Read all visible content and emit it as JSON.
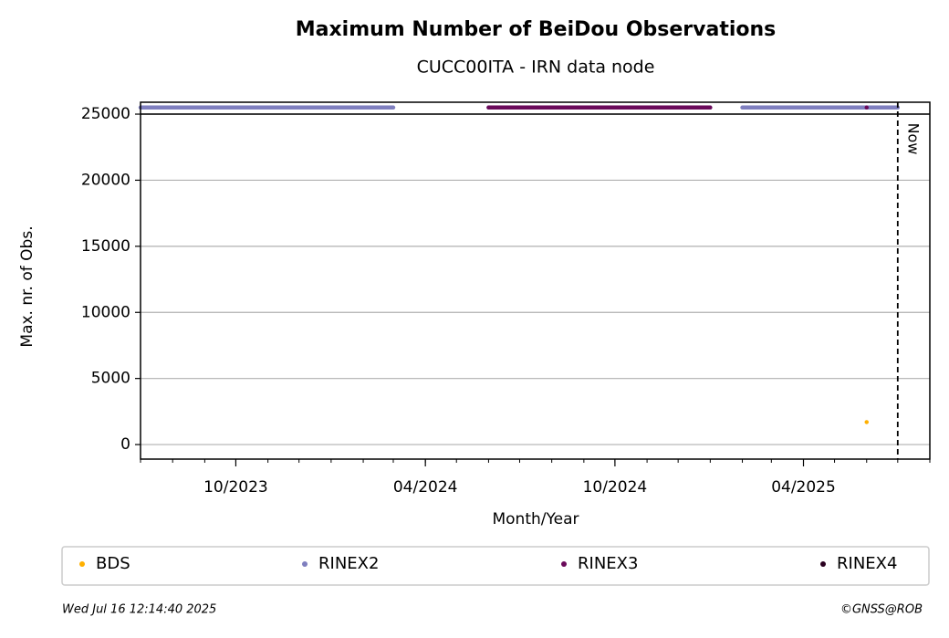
{
  "chart_data": {
    "type": "line",
    "title": "Maximum Number of BeiDou Observations",
    "subtitle": "CUCC00ITA - IRN data node",
    "x_label": "Month/Year",
    "y_label": "Max. nr. of Obs.",
    "xlim": [
      "2023-07",
      "2025-08"
    ],
    "xticks": [
      {
        "value": "2023-10",
        "label": "10/2023"
      },
      {
        "value": "2024-04",
        "label": "04/2024"
      },
      {
        "value": "2024-10",
        "label": "10/2024"
      },
      {
        "value": "2025-04",
        "label": "04/2025"
      }
    ],
    "ylim": [
      -1100,
      25900
    ],
    "yticks": [
      0,
      5000,
      10000,
      15000,
      20000,
      25000
    ],
    "grid": true,
    "separator_y": 25000,
    "now": "2025-07",
    "now_label": "Now",
    "series": [
      {
        "name": "BDS",
        "color": "#ffb000",
        "x": [
          "2025-06"
        ],
        "values": [
          1700
        ]
      },
      {
        "name": "RINEX2",
        "color": "#7f7fbf",
        "x": [
          "2023-07",
          "2024-03",
          null,
          "2024-06",
          "2025-01",
          null,
          "2025-02",
          "2025-07"
        ],
        "values": [
          25500,
          25500,
          null,
          25500,
          25500,
          null,
          25500,
          25500
        ]
      },
      {
        "name": "RINEX3",
        "color": "#6a0a5a",
        "x": [
          "2024-06",
          "2025-01",
          null,
          "2025-06"
        ],
        "values": [
          25500,
          25500,
          null,
          25500
        ]
      },
      {
        "name": "RINEX4",
        "color": "#2a0020",
        "x": [],
        "values": []
      }
    ],
    "legend": "bottom",
    "timestamp": "Wed Jul 16 12:14:40 2025",
    "credit": "©GNSS@ROB"
  }
}
